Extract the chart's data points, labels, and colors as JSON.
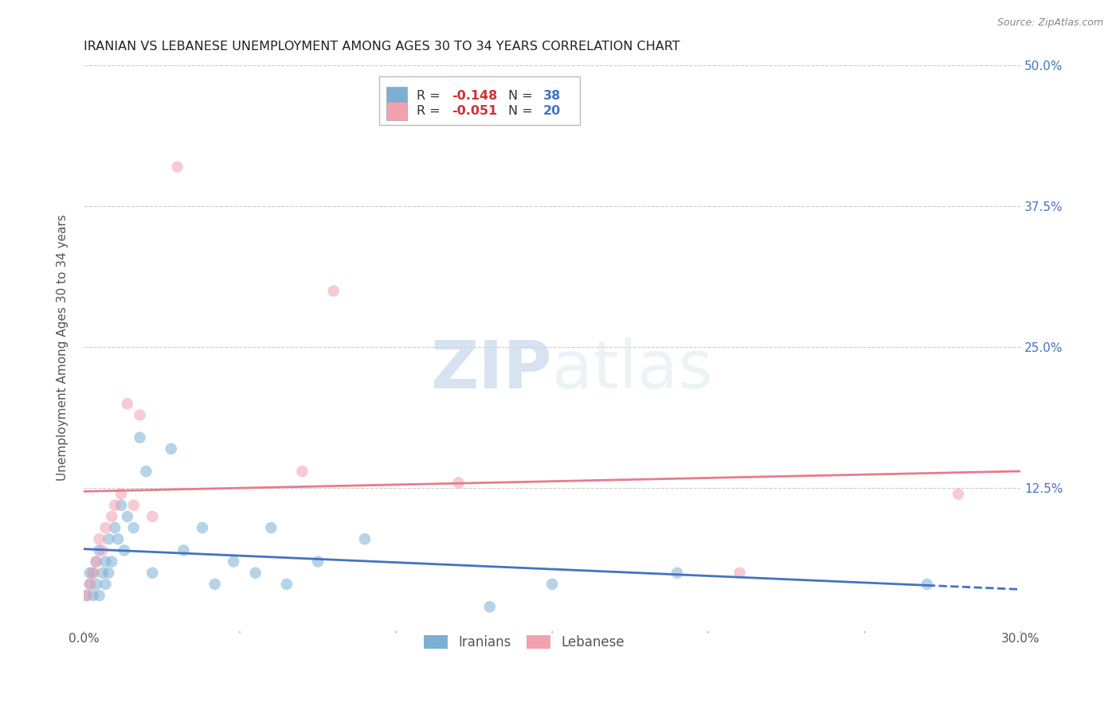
{
  "title": "IRANIAN VS LEBANESE UNEMPLOYMENT AMONG AGES 30 TO 34 YEARS CORRELATION CHART",
  "source": "Source: ZipAtlas.com",
  "ylabel": "Unemployment Among Ages 30 to 34 years",
  "xlim": [
    0.0,
    0.3
  ],
  "ylim": [
    0.0,
    0.5
  ],
  "xticks": [
    0.0,
    0.05,
    0.1,
    0.15,
    0.2,
    0.25,
    0.3
  ],
  "xticklabels": [
    "0.0%",
    "",
    "",
    "",
    "",
    "",
    "30.0%"
  ],
  "ytick_positions": [
    0.0,
    0.125,
    0.25,
    0.375,
    0.5
  ],
  "ytick_labels": [
    "",
    "12.5%",
    "25.0%",
    "37.5%",
    "50.0%"
  ],
  "background_color": "#ffffff",
  "grid_color": "#cccccc",
  "iranians_color": "#7bafd4",
  "lebanese_color": "#f4a0b0",
  "trendline_iranian_color": "#4472c4",
  "trendline_lebanese_color": "#e87b8c",
  "legend_R_iranian": "-0.148",
  "legend_N_iranian": "38",
  "legend_R_lebanese": "-0.051",
  "legend_N_lebanese": "20",
  "iranians_x": [
    0.001,
    0.002,
    0.002,
    0.003,
    0.003,
    0.004,
    0.004,
    0.005,
    0.005,
    0.006,
    0.007,
    0.007,
    0.008,
    0.008,
    0.009,
    0.01,
    0.011,
    0.012,
    0.013,
    0.014,
    0.016,
    0.018,
    0.02,
    0.022,
    0.028,
    0.032,
    0.038,
    0.042,
    0.048,
    0.055,
    0.06,
    0.065,
    0.075,
    0.09,
    0.13,
    0.15,
    0.19,
    0.27
  ],
  "iranians_y": [
    0.03,
    0.04,
    0.05,
    0.03,
    0.05,
    0.04,
    0.06,
    0.03,
    0.07,
    0.05,
    0.04,
    0.06,
    0.05,
    0.08,
    0.06,
    0.09,
    0.08,
    0.11,
    0.07,
    0.1,
    0.09,
    0.17,
    0.14,
    0.05,
    0.16,
    0.07,
    0.09,
    0.04,
    0.06,
    0.05,
    0.09,
    0.04,
    0.06,
    0.08,
    0.02,
    0.04,
    0.05,
    0.04
  ],
  "lebanese_x": [
    0.001,
    0.002,
    0.003,
    0.004,
    0.005,
    0.006,
    0.007,
    0.009,
    0.01,
    0.012,
    0.014,
    0.016,
    0.018,
    0.022,
    0.03,
    0.07,
    0.08,
    0.12,
    0.21,
    0.28
  ],
  "lebanese_y": [
    0.03,
    0.04,
    0.05,
    0.06,
    0.08,
    0.07,
    0.09,
    0.1,
    0.11,
    0.12,
    0.2,
    0.11,
    0.19,
    0.1,
    0.41,
    0.14,
    0.3,
    0.13,
    0.05,
    0.12
  ],
  "marker_size": 110,
  "marker_alpha": 0.55
}
